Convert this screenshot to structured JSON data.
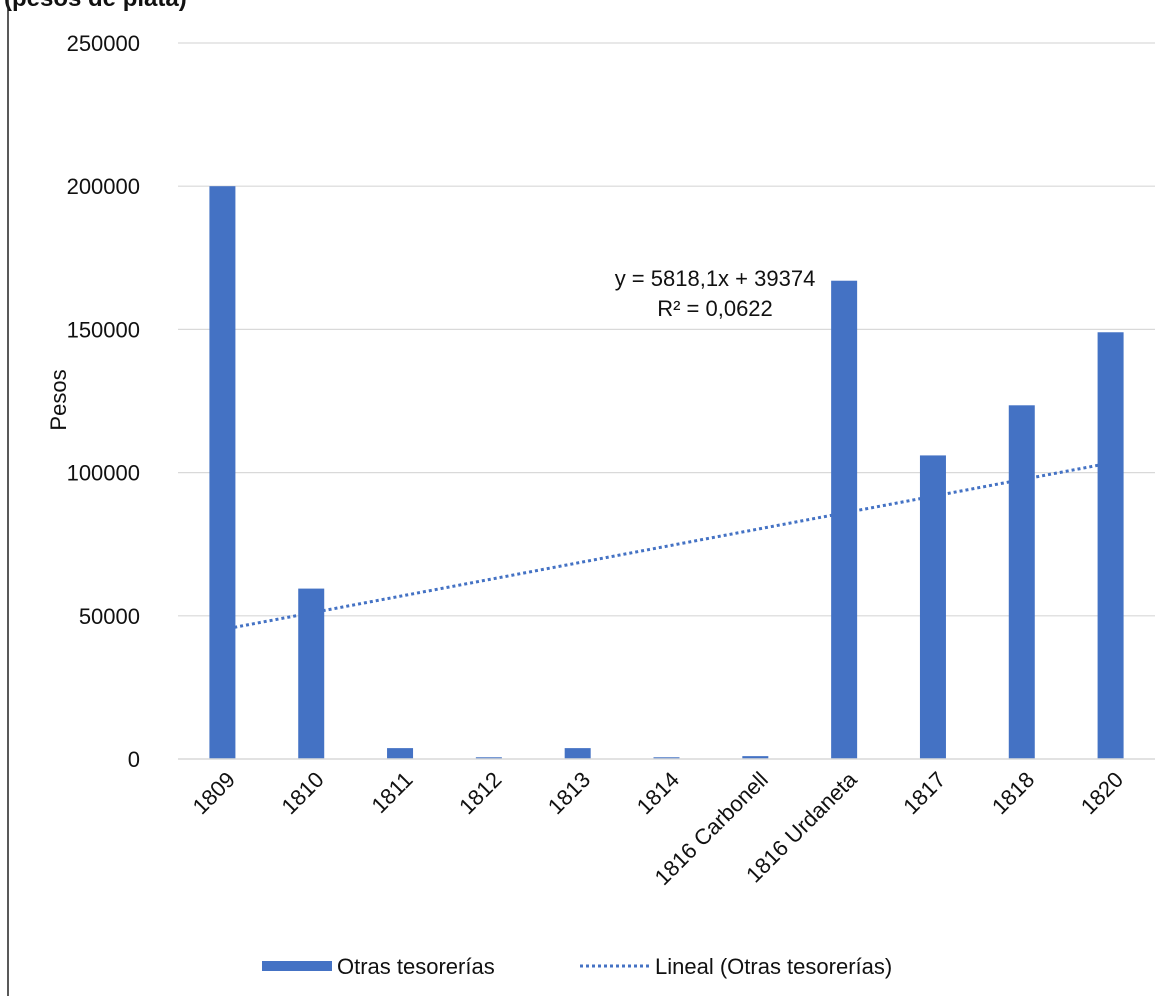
{
  "chart_title_fragment": "(pesos de plata)",
  "chart_data": {
    "type": "bar",
    "title": "",
    "xlabel": "",
    "ylabel": "Pesos",
    "ylim": [
      0,
      250000
    ],
    "y_ticks": [
      "0",
      "50000",
      "100000",
      "150000",
      "200000",
      "250000"
    ],
    "categories": [
      "1809",
      "1810",
      "1811",
      "1812",
      "1813",
      "1814",
      "1816 Carbonell",
      "1816 Urdaneta",
      "1817",
      "1818",
      "1820"
    ],
    "series": [
      {
        "name": "Otras tesorerías",
        "color": "#4472C4",
        "values": [
          200000,
          59500,
          3800,
          600,
          3800,
          600,
          1000,
          167000,
          106000,
          123500,
          149000
        ]
      }
    ],
    "trendline": {
      "name": "Lineal (Otras tesorerías)",
      "type": "linear",
      "slope": 5818.1,
      "intercept": 39374,
      "equation_label": "y = 5818,1x + 39374",
      "r2_label": "R² = 0,0622",
      "color": "#4472C4",
      "style": "dotted"
    },
    "grid": true,
    "legend_position": "bottom"
  }
}
